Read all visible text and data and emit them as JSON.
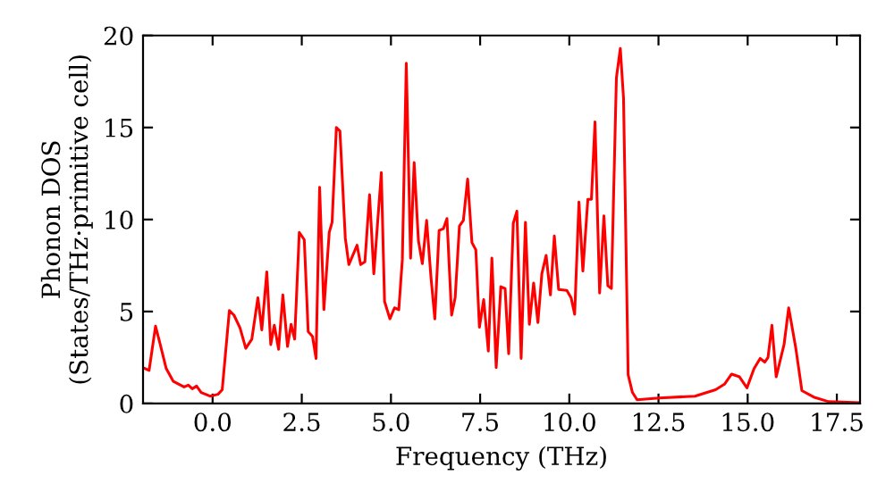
{
  "chart_data": {
    "type": "line",
    "xlabel": "Frequency (THz)",
    "ylabel": "Phonon DOS\n(States/THz·primitive cell)",
    "xlim": [
      -1.95,
      18.15
    ],
    "ylim": [
      0,
      20
    ],
    "xticks": [
      {
        "value": 0,
        "label": "0.0"
      },
      2.5,
      {
        "value": 5,
        "label": "5.0"
      },
      7.5,
      {
        "value": 10,
        "label": "10.0"
      },
      12.5,
      {
        "value": 15,
        "label": "15.0"
      },
      17.5
    ],
    "yticks": [
      0,
      5,
      10,
      15,
      20
    ],
    "grid": false,
    "legend": false,
    "marker": "none",
    "line_style": "solid",
    "series": [
      {
        "color": "#ff0000",
        "x": [
          -1.9,
          -1.78,
          -1.6,
          -1.48,
          -1.3,
          -1.1,
          -0.8,
          -0.68,
          -0.57,
          -0.45,
          -0.32,
          -0.07,
          0.15,
          0.27,
          0.47,
          0.6,
          0.77,
          0.93,
          1.1,
          1.27,
          1.38,
          1.52,
          1.63,
          1.73,
          1.85,
          1.97,
          2.1,
          2.2,
          2.3,
          2.43,
          2.57,
          2.68,
          2.8,
          2.9,
          3.0,
          3.12,
          3.27,
          3.35,
          3.47,
          3.57,
          3.72,
          3.82,
          4.05,
          4.15,
          4.27,
          4.4,
          4.52,
          4.73,
          4.82,
          4.97,
          5.1,
          5.22,
          5.32,
          5.43,
          5.55,
          5.65,
          5.77,
          5.88,
          6.0,
          6.12,
          6.23,
          6.35,
          6.47,
          6.57,
          6.7,
          6.8,
          6.92,
          7.03,
          7.15,
          7.27,
          7.38,
          7.48,
          7.6,
          7.73,
          7.83,
          7.95,
          8.08,
          8.2,
          8.3,
          8.43,
          8.53,
          8.65,
          8.77,
          8.88,
          9.0,
          9.12,
          9.23,
          9.35,
          9.47,
          9.58,
          9.7,
          9.93,
          10.05,
          10.15,
          10.27,
          10.38,
          10.52,
          10.62,
          10.72,
          10.85,
          10.97,
          11.08,
          11.18,
          11.32,
          11.43,
          11.52,
          11.65,
          11.77,
          11.9,
          12.52,
          13.52,
          14.1,
          14.35,
          14.55,
          14.77,
          14.98,
          15.18,
          15.35,
          15.48,
          15.57,
          15.68,
          15.8,
          16.02,
          16.15,
          16.35,
          16.52,
          16.85,
          17.27,
          18.13
        ],
        "values": [
          1.9,
          1.8,
          4.2,
          3.3,
          1.9,
          1.2,
          0.9,
          1.0,
          0.8,
          0.95,
          0.6,
          0.4,
          0.5,
          0.75,
          5.05,
          4.8,
          4.1,
          3.0,
          3.5,
          5.75,
          4.0,
          7.15,
          3.2,
          4.25,
          2.95,
          5.9,
          3.1,
          4.3,
          3.5,
          9.3,
          8.9,
          3.9,
          3.65,
          2.45,
          11.75,
          5.1,
          9.3,
          9.85,
          15.0,
          14.8,
          9.0,
          7.55,
          8.6,
          7.55,
          7.7,
          11.35,
          7.05,
          12.55,
          5.55,
          4.6,
          5.2,
          5.1,
          7.85,
          18.5,
          7.9,
          13.1,
          8.85,
          7.6,
          9.95,
          6.9,
          4.6,
          9.4,
          9.5,
          10.05,
          4.8,
          5.75,
          9.65,
          9.95,
          12.2,
          8.75,
          8.35,
          4.15,
          5.65,
          2.85,
          7.9,
          1.95,
          6.35,
          6.25,
          2.7,
          9.8,
          10.45,
          2.45,
          9.85,
          4.3,
          6.55,
          4.4,
          7.05,
          8.05,
          5.9,
          9.1,
          6.2,
          6.15,
          5.75,
          4.85,
          10.95,
          7.2,
          11.1,
          11.1,
          15.3,
          6.0,
          10.2,
          6.4,
          6.25,
          17.7,
          19.3,
          16.6,
          1.55,
          0.6,
          0.2,
          0.3,
          0.4,
          0.75,
          1.05,
          1.6,
          1.45,
          0.85,
          1.9,
          2.45,
          2.25,
          2.5,
          4.25,
          1.45,
          3.2,
          5.2,
          3.0,
          0.7,
          0.35,
          0.1,
          0.05
        ]
      }
    ]
  }
}
